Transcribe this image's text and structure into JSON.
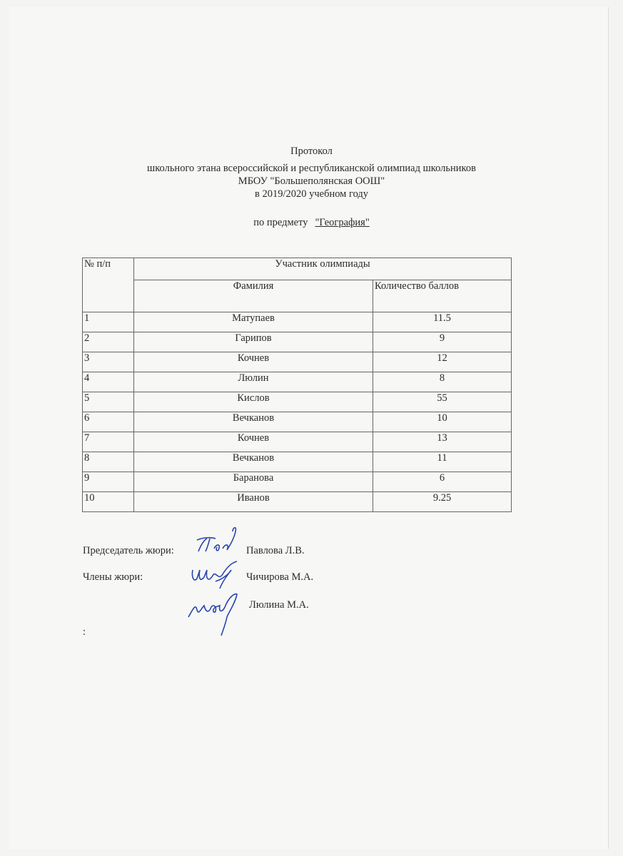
{
  "header": {
    "title": "Протокол",
    "line1": "школьного этана всероссийской и республиканской олимпиад школьников",
    "line2": "МБОУ \"Большеполянская ООШ\"",
    "line3": "в 2019/2020 учебном году",
    "subject_label": "по предмету",
    "subject_value": "\"География\""
  },
  "table": {
    "col_num": "№ п/п",
    "col_group": "Участник олимпиады",
    "col_name": "Фамилия",
    "col_score": "Количество баллов",
    "rows": [
      {
        "n": "1",
        "name": "Матупаев",
        "score": "11.5"
      },
      {
        "n": "2",
        "name": "Гарипов",
        "score": "9"
      },
      {
        "n": "3",
        "name": "Кочнев",
        "score": "12"
      },
      {
        "n": "4",
        "name": "Люлин",
        "score": "8"
      },
      {
        "n": "5",
        "name": "Кислов",
        "score": "55"
      },
      {
        "n": "6",
        "name": "Вечканов",
        "score": "10"
      },
      {
        "n": "7",
        "name": "Кочнев",
        "score": "13"
      },
      {
        "n": "8",
        "name": "Вечканов",
        "score": "11"
      },
      {
        "n": "9",
        "name": "Баранова",
        "score": "6"
      },
      {
        "n": "10",
        "name": "Иванов",
        "score": "9.25"
      }
    ]
  },
  "jury": {
    "chair_label": "Председатель жюри:",
    "chair_name": "Павлова Л.В.",
    "members_label": "Члены жюри:",
    "member1": "Чичирова М.А.",
    "member2": "Люлина М.А.",
    "trailing": ":"
  },
  "colors": {
    "ink": "#2a2a2a",
    "signature": "#2a45b0"
  }
}
